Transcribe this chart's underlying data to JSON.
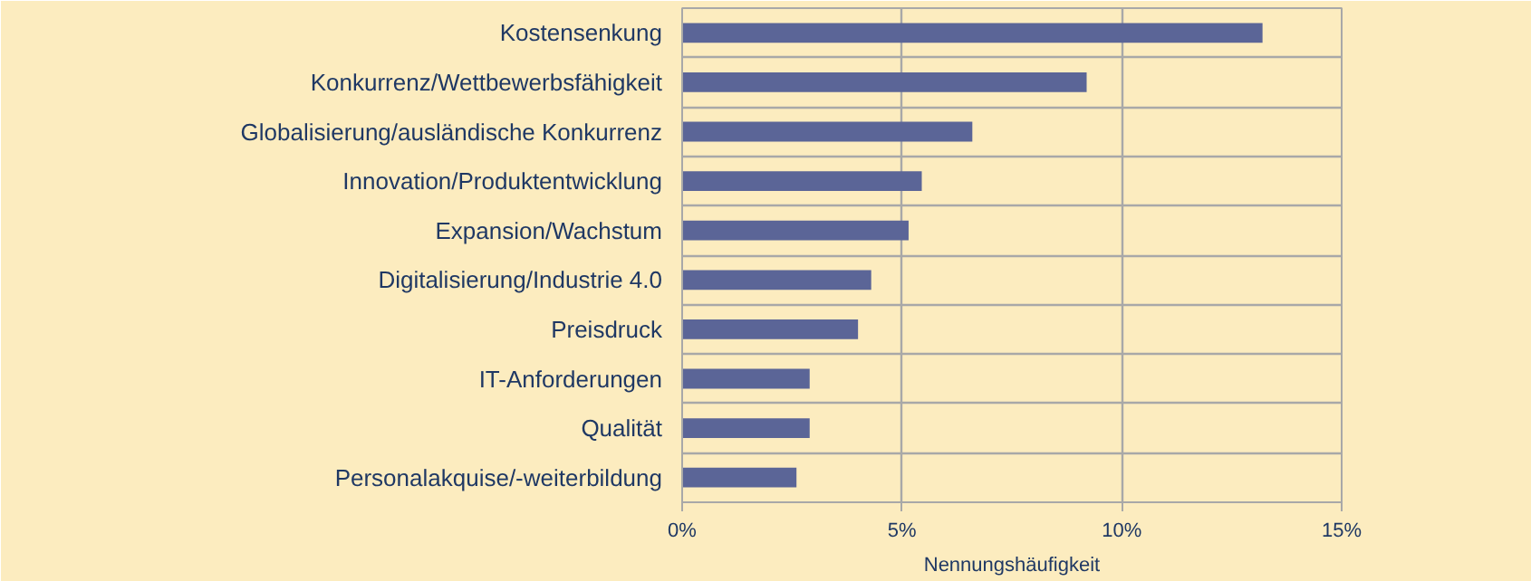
{
  "chart_data": {
    "type": "bar",
    "orientation": "horizontal",
    "xlabel": "Nennungshäufigkeit",
    "categories": [
      "Kostensenkung",
      "Konkurrenz/Wettbewerbsfähigkeit",
      "Globalisierung/ausländische Konkurrenz",
      "Innovation/Produktentwicklung",
      "Expansion/Wachstum",
      "Digitalisierung/Industrie 4.0",
      "Preisdruck",
      "IT-Anforderungen",
      "Qualität",
      "Personalakquise/-weiterbildung"
    ],
    "values": [
      13.2,
      9.2,
      6.6,
      5.45,
      5.15,
      4.3,
      4.0,
      2.9,
      2.9,
      2.6
    ],
    "color": "#5b6597",
    "xlim": [
      0,
      15
    ],
    "xticks": [
      {
        "value": 0,
        "label": "0%"
      },
      {
        "value": 5,
        "label": "5%"
      },
      {
        "value": 10,
        "label": "10%"
      },
      {
        "value": 15,
        "label": "15%"
      }
    ],
    "grid": true
  }
}
